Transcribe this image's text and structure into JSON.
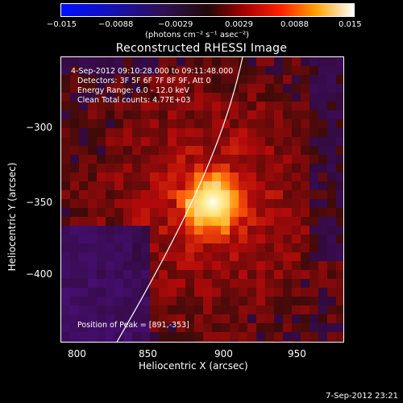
{
  "colorbar": {
    "ticks": [
      "−0.015",
      "−0.0088",
      "−0.0029",
      "0.0029",
      "0.0088",
      "0.015"
    ],
    "units": "(photons cm⁻² s⁻¹ asec⁻²)"
  },
  "title": "Reconstructed RHESSI Image",
  "annotations": {
    "time": "4-Sep-2012 09:10:28.000 to 09:11:48.000",
    "detectors": "Detectors: 3F 5F 6F 7F 8F 9F, Att 0",
    "energy": "Energy Range: 6.0 - 12.0 keV",
    "clean": "Clean    Total counts: 4.77E+03",
    "peak": "Position of Peak = [891,-353]"
  },
  "axes": {
    "xlabel": "Heliocentric X (arcsec)",
    "ylabel": "Heliocentric Y (arcsec)",
    "xticks": [
      "800",
      "850",
      "900",
      "950"
    ],
    "yticks": [
      "−300",
      "−350",
      "−400"
    ]
  },
  "footer": "7-Sep-2012 23:21"
}
